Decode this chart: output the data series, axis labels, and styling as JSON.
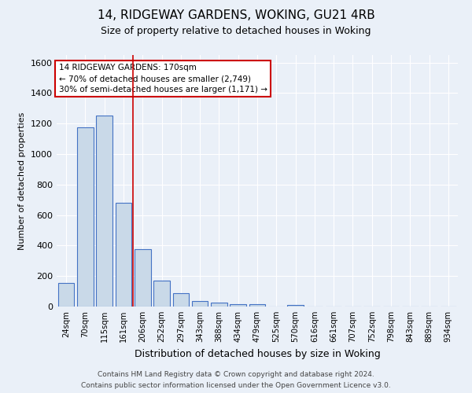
{
  "title": "14, RIDGEWAY GARDENS, WOKING, GU21 4RB",
  "subtitle": "Size of property relative to detached houses in Woking",
  "xlabel": "Distribution of detached houses by size in Woking",
  "ylabel": "Number of detached properties",
  "footnote1": "Contains HM Land Registry data © Crown copyright and database right 2024.",
  "footnote2": "Contains public sector information licensed under the Open Government Licence v3.0.",
  "bar_labels": [
    "24sqm",
    "70sqm",
    "115sqm",
    "161sqm",
    "206sqm",
    "252sqm",
    "297sqm",
    "343sqm",
    "388sqm",
    "434sqm",
    "479sqm",
    "525sqm",
    "570sqm",
    "616sqm",
    "661sqm",
    "707sqm",
    "752sqm",
    "798sqm",
    "843sqm",
    "889sqm",
    "934sqm"
  ],
  "bar_values": [
    155,
    1175,
    1255,
    680,
    375,
    170,
    90,
    38,
    28,
    18,
    15,
    0,
    12,
    0,
    0,
    0,
    0,
    0,
    0,
    0,
    0
  ],
  "bar_color": "#c9d9e8",
  "bar_edge_color": "#4472c4",
  "background_color": "#eaf0f8",
  "grid_color": "#ffffff",
  "red_line_x": 3.5,
  "annotation_text": "14 RIDGEWAY GARDENS: 170sqm\n← 70% of detached houses are smaller (2,749)\n30% of semi-detached houses are larger (1,171) →",
  "annotation_box_color": "#ffffff",
  "annotation_box_edge_color": "#cc0000",
  "ylim": [
    0,
    1650
  ],
  "yticks": [
    0,
    200,
    400,
    600,
    800,
    1000,
    1200,
    1400,
    1600
  ]
}
